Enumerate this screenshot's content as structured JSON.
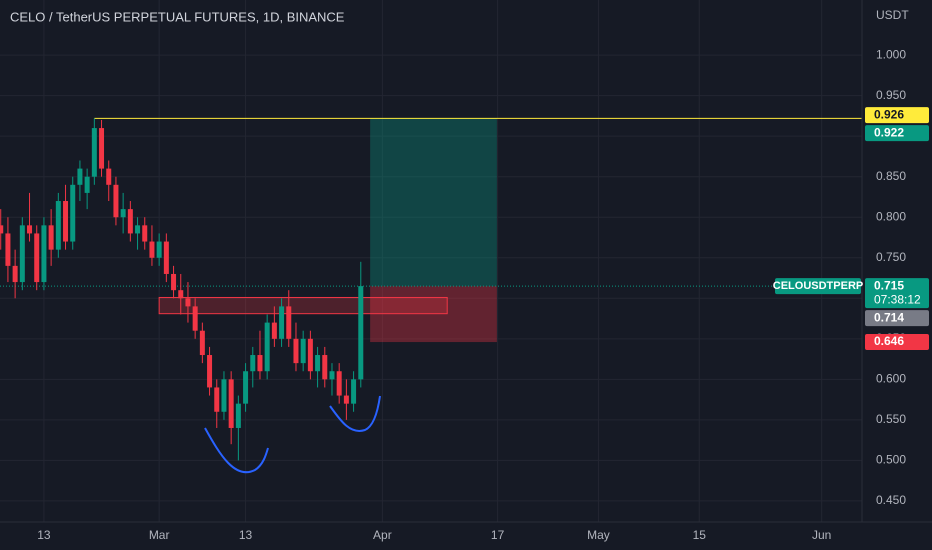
{
  "chart_data": {
    "type": "candlestick",
    "title": "CELO / TetherUS PERPETUAL FUTURES, 1D, BINANCE",
    "y_axis_label": "USDT",
    "x": [
      -6,
      -5,
      -4,
      -3,
      -2,
      -1,
      0,
      1,
      2,
      3,
      4,
      5,
      6,
      7,
      8,
      9,
      10,
      11,
      12,
      13,
      14,
      15,
      16,
      17,
      18,
      19,
      20,
      21,
      22,
      23,
      24,
      25,
      26,
      27,
      28,
      29,
      30,
      31,
      32,
      33,
      34,
      35,
      36,
      37,
      38,
      39,
      40,
      41,
      42,
      43,
      44
    ],
    "open": [
      0.79,
      0.78,
      0.74,
      0.72,
      0.79,
      0.78,
      0.72,
      0.79,
      0.76,
      0.82,
      0.77,
      0.84,
      0.83,
      0.85,
      0.91,
      0.86,
      0.84,
      0.8,
      0.81,
      0.78,
      0.79,
      0.77,
      0.75,
      0.77,
      0.73,
      0.71,
      0.7,
      0.69,
      0.66,
      0.63,
      0.59,
      0.56,
      0.6,
      0.54,
      0.57,
      0.61,
      0.63,
      0.61,
      0.67,
      0.65,
      0.69,
      0.65,
      0.62,
      0.65,
      0.61,
      0.63,
      0.6,
      0.61,
      0.58,
      0.57,
      0.6
    ],
    "high": [
      0.81,
      0.8,
      0.76,
      0.8,
      0.83,
      0.79,
      0.8,
      0.81,
      0.83,
      0.84,
      0.85,
      0.87,
      0.86,
      0.922,
      0.92,
      0.87,
      0.85,
      0.83,
      0.82,
      0.8,
      0.8,
      0.79,
      0.78,
      0.78,
      0.74,
      0.73,
      0.72,
      0.7,
      0.67,
      0.64,
      0.6,
      0.61,
      0.61,
      0.58,
      0.62,
      0.64,
      0.66,
      0.68,
      0.69,
      0.7,
      0.71,
      0.67,
      0.66,
      0.66,
      0.64,
      0.64,
      0.62,
      0.62,
      0.6,
      0.61,
      0.745
    ],
    "low": [
      0.76,
      0.72,
      0.7,
      0.71,
      0.77,
      0.71,
      0.71,
      0.74,
      0.75,
      0.76,
      0.76,
      0.82,
      0.81,
      0.84,
      0.85,
      0.82,
      0.79,
      0.78,
      0.77,
      0.76,
      0.76,
      0.74,
      0.74,
      0.72,
      0.7,
      0.68,
      0.67,
      0.65,
      0.62,
      0.58,
      0.54,
      0.55,
      0.52,
      0.5,
      0.56,
      0.59,
      0.6,
      0.6,
      0.64,
      0.64,
      0.64,
      0.61,
      0.61,
      0.6,
      0.59,
      0.59,
      0.58,
      0.57,
      0.55,
      0.56,
      0.59
    ],
    "close": [
      0.78,
      0.74,
      0.72,
      0.79,
      0.78,
      0.72,
      0.79,
      0.76,
      0.82,
      0.77,
      0.84,
      0.86,
      0.85,
      0.91,
      0.86,
      0.84,
      0.8,
      0.81,
      0.78,
      0.79,
      0.77,
      0.75,
      0.77,
      0.73,
      0.71,
      0.7,
      0.69,
      0.66,
      0.63,
      0.59,
      0.56,
      0.6,
      0.54,
      0.57,
      0.61,
      0.63,
      0.61,
      0.67,
      0.65,
      0.69,
      0.65,
      0.62,
      0.65,
      0.61,
      0.63,
      0.6,
      0.61,
      0.58,
      0.57,
      0.6,
      0.715
    ],
    "up_color": "#089981",
    "down_color": "#f23645",
    "xlim": [
      -6.1,
      113.6
    ],
    "ylim": [
      0.424,
      1.068
    ],
    "xticks": [
      {
        "value": 0,
        "label": "13"
      },
      {
        "value": 16,
        "label": "Mar"
      },
      {
        "value": 28,
        "label": "13"
      },
      {
        "value": 47,
        "label": "Apr"
      },
      {
        "value": 63,
        "label": "17"
      },
      {
        "value": 77,
        "label": "May"
      },
      {
        "value": 91,
        "label": "15"
      },
      {
        "value": 108,
        "label": "Jun"
      }
    ],
    "yticks": [
      {
        "value": 0.45,
        "label": "0.450"
      },
      {
        "value": 0.5,
        "label": "0.500"
      },
      {
        "value": 0.55,
        "label": "0.550"
      },
      {
        "value": 0.6,
        "label": "0.600"
      },
      {
        "value": 0.65,
        "label": "0.650"
      },
      {
        "value": 0.7,
        "label": "0.700"
      },
      {
        "value": 0.75,
        "label": "0.750"
      },
      {
        "value": 0.8,
        "label": "0.800"
      },
      {
        "value": 0.85,
        "label": "0.850"
      },
      {
        "value": 0.9,
        "label": "0.900"
      },
      {
        "value": 0.95,
        "label": "0.950"
      },
      {
        "value": 1.0,
        "label": "1.000"
      }
    ],
    "grid": true,
    "hline": {
      "value": 0.922,
      "start": 7,
      "color": "#ffeb3b"
    },
    "zone": {
      "top": 0.701,
      "bottom": 0.681,
      "start": 16,
      "end": 56
    },
    "position": {
      "entry": 0.715,
      "target": 0.922,
      "stop": 0.646,
      "start": 45.3,
      "end": 62.9
    },
    "last_price": {
      "symbol": "CELOUSDTPERP",
      "value": 0.715,
      "countdown": "07:38:12",
      "color": "#089981"
    },
    "price_labels": [
      {
        "value": 0.926,
        "color": "#ffeb3b"
      },
      {
        "value": 0.922,
        "color": "#089981"
      },
      {
        "value": 0.714,
        "color": "#787b86"
      },
      {
        "value": 0.646,
        "color": "#f23645"
      }
    ]
  }
}
